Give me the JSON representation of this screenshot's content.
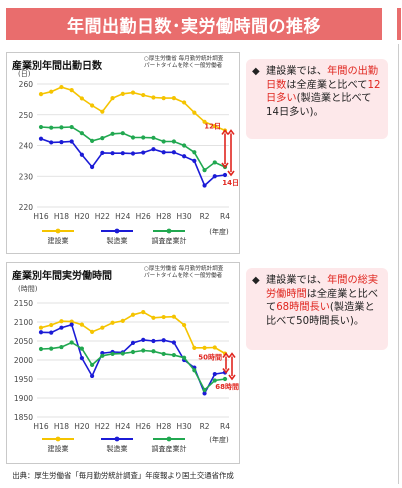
{
  "title": "年間出勤日数･実労働時間の推移",
  "colors": {
    "banner": "#e96d6d",
    "construction": "#f5c400",
    "manufacturing": "#1b1bd6",
    "all_industries": "#21a850",
    "arrow": "#e0261f",
    "note_bg": "#fde8ea"
  },
  "chart_data": [
    {
      "type": "line",
      "title": "産業別年間出勤日数",
      "source_note": "○厚生労働省 毎月勤労統計調査\nパートタイムを除く一般労働者",
      "ylabel": "(日)",
      "xlabel": "(年度)",
      "ylim": [
        220,
        260
      ],
      "yticks": [
        220,
        230,
        240,
        250,
        260
      ],
      "x": [
        "H16",
        "H17",
        "H18",
        "H19",
        "H20",
        "H21",
        "H22",
        "H23",
        "H24",
        "H25",
        "H26",
        "H27",
        "H28",
        "H29",
        "H30",
        "R1",
        "R2",
        "R3",
        "R4"
      ],
      "xtick_labels": [
        "H16",
        "H18",
        "H20",
        "H22",
        "H24",
        "H26",
        "H28",
        "H30",
        "R2",
        "R4"
      ],
      "series": [
        {
          "name": "建設業",
          "key": "construction",
          "values": [
            256.7,
            257.5,
            259.0,
            258.0,
            255.3,
            253.0,
            251.0,
            255.4,
            256.8,
            257.2,
            256.4,
            255.6,
            255.4,
            255.4,
            254.0,
            250.7,
            247.7,
            246.3,
            244.9
          ]
        },
        {
          "name": "製造業",
          "key": "manufacturing",
          "values": [
            242.2,
            241.0,
            241.1,
            241.3,
            237.0,
            233.0,
            237.6,
            237.5,
            237.5,
            237.4,
            237.7,
            238.8,
            237.8,
            237.8,
            236.5,
            235.0,
            227.0,
            230.0,
            230.4
          ]
        },
        {
          "name": "調査産業計",
          "key": "all_industries",
          "values": [
            246.0,
            245.8,
            245.9,
            246.0,
            244.0,
            241.5,
            242.4,
            243.8,
            244.0,
            242.6,
            242.6,
            242.5,
            241.3,
            241.3,
            240.0,
            237.8,
            232.0,
            234.5,
            233.0
          ]
        }
      ],
      "annotations": [
        {
          "text": "12日",
          "between": [
            "construction",
            "all_industries"
          ]
        },
        {
          "text": "14日",
          "between": [
            "construction",
            "manufacturing"
          ]
        }
      ]
    },
    {
      "type": "line",
      "title": "産業別年間実労働時間",
      "source_note": "○厚生労働省 毎月勤労統計調査\nパートタイムを除く一般労働者",
      "ylabel": "(時間)",
      "xlabel": "(年度)",
      "ylim": [
        1850,
        2150
      ],
      "yticks": [
        1850,
        1900,
        1950,
        2000,
        2050,
        2100,
        2150
      ],
      "x": [
        "H16",
        "H17",
        "H18",
        "H19",
        "H20",
        "H21",
        "H22",
        "H23",
        "H24",
        "H25",
        "H26",
        "H27",
        "H28",
        "H29",
        "H30",
        "R1",
        "R2",
        "R3",
        "R4"
      ],
      "xtick_labels": [
        "H16",
        "H18",
        "H20",
        "H22",
        "H24",
        "H26",
        "H28",
        "H30",
        "R2",
        "R4"
      ],
      "series": [
        {
          "name": "建設業",
          "key": "construction",
          "values": [
            2085,
            2092,
            2102,
            2101,
            2093,
            2074,
            2085,
            2098,
            2103,
            2119,
            2126,
            2111,
            2113,
            2114,
            2092,
            2032,
            2032,
            2033,
            2017
          ]
        },
        {
          "name": "製造業",
          "key": "manufacturing",
          "values": [
            2073,
            2072,
            2085,
            2093,
            2005,
            1958,
            2018,
            2021,
            2020,
            2045,
            2053,
            2050,
            2052,
            2046,
            2000,
            1980,
            1912,
            1963,
            1967
          ]
        },
        {
          "name": "調査産業計",
          "key": "all_industries",
          "values": [
            2029,
            2030,
            2034,
            2046,
            2030,
            1987,
            2011,
            2016,
            2017,
            2021,
            2025,
            2023,
            2016,
            2013,
            2006,
            1973,
            1921,
            1946,
            1950
          ]
        }
      ],
      "annotations": [
        {
          "text": "50時間",
          "between": [
            "construction",
            "manufacturing"
          ]
        },
        {
          "text": "68時間",
          "between": [
            "construction",
            "all_industries"
          ]
        }
      ]
    }
  ],
  "notes": [
    {
      "parts": [
        {
          "t": "建設業では、",
          "hl": false
        },
        {
          "t": "年間の出勤日数",
          "hl": true
        },
        {
          "t": "は全産業と比べて",
          "hl": false
        },
        {
          "t": "12日多い",
          "hl": true
        },
        {
          "t": "(製造業と比べて14日多い)。",
          "hl": false
        }
      ]
    },
    {
      "parts": [
        {
          "t": "建設業では、",
          "hl": false
        },
        {
          "t": "年間の総実労働時間",
          "hl": true
        },
        {
          "t": "は全産業と比べて",
          "hl": false
        },
        {
          "t": "68時間長い",
          "hl": true
        },
        {
          "t": "(製造業と比べて50時間長い)。",
          "hl": false
        }
      ]
    }
  ],
  "source": "出典：厚生労働省「毎月勤労統計調査」年度報より国土交通省作成"
}
